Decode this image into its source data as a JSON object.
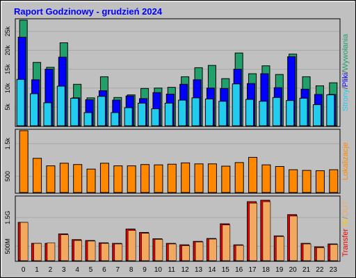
{
  "title": "Raport Godzinowy -  grudzień 2024",
  "colors": {
    "background": "#c0c0c0",
    "title": "#0000ff",
    "wywolania": "#22a06b",
    "pliki": "#0000ff",
    "strony": "#22ccee",
    "lokalizacje": "#ff8800",
    "transfer_in": "#ee0000",
    "transfer_out": "#f3a860"
  },
  "chart_data": [
    {
      "type": "bar",
      "panel": "hits",
      "categories": [
        "0",
        "1",
        "2",
        "3",
        "4",
        "5",
        "6",
        "7",
        "8",
        "9",
        "10",
        "11",
        "12",
        "13",
        "14",
        "15",
        "16",
        "17",
        "18",
        "19",
        "20",
        "21",
        "22",
        "23"
      ],
      "ylim": [
        0,
        28000
      ],
      "yticks": [
        {
          "value": 5000,
          "label": "5k"
        },
        {
          "value": 10000,
          "label": "10k"
        },
        {
          "value": 15000,
          "label": "15k"
        },
        {
          "value": 20000,
          "label": "20k"
        },
        {
          "value": 25000,
          "label": "25k"
        }
      ],
      "legend": [
        {
          "text": "Strony",
          "color": "#22ccee"
        },
        {
          "text": "/",
          "color": "#444444"
        },
        {
          "text": "Pliki",
          "color": "#0000ff"
        },
        {
          "text": "/",
          "color": "#444444"
        },
        {
          "text": "Wywołania",
          "color": "#22a06b"
        }
      ],
      "series": [
        {
          "name": "Wywołania",
          "values": [
            28000,
            16800,
            15500,
            22000,
            11000,
            7400,
            13000,
            7500,
            8200,
            9900,
            10000,
            10200,
            13000,
            15400,
            16000,
            12500,
            19300,
            13800,
            15900,
            13600,
            19000,
            13000,
            10600,
            11400
          ]
        },
        {
          "name": "Pliki",
          "values": [
            23500,
            12200,
            15000,
            18200,
            7400,
            6900,
            9300,
            6800,
            7900,
            7200,
            8800,
            8400,
            11000,
            12200,
            10000,
            9900,
            15000,
            11200,
            13800,
            10100,
            18300,
            9700,
            8300,
            8300
          ]
        },
        {
          "name": "Strony",
          "values": [
            12300,
            8500,
            6100,
            10500,
            7300,
            3500,
            7800,
            3500,
            4800,
            6000,
            4500,
            6000,
            6800,
            7400,
            7100,
            6500,
            11100,
            7000,
            6500,
            7500,
            6700,
            7300,
            5600,
            8200
          ]
        }
      ]
    },
    {
      "type": "bar",
      "panel": "sites",
      "categories": [
        "0",
        "1",
        "2",
        "3",
        "4",
        "5",
        "6",
        "7",
        "8",
        "9",
        "10",
        "11",
        "12",
        "13",
        "14",
        "15",
        "16",
        "17",
        "18",
        "19",
        "20",
        "21",
        "22",
        "23"
      ],
      "ylim": [
        0,
        1900
      ],
      "yticks": [
        {
          "value": 500,
          "label": "500"
        },
        {
          "value": 1500,
          "label": "1.5k"
        }
      ],
      "legend": [
        {
          "text": "Lokalizacje",
          "color": "#ff8800"
        }
      ],
      "series": [
        {
          "name": "Lokalizacje",
          "values": [
            1900,
            1050,
            820,
            900,
            860,
            720,
            900,
            820,
            820,
            860,
            850,
            870,
            910,
            880,
            880,
            810,
            920,
            1080,
            850,
            800,
            700,
            680,
            670,
            700
          ]
        }
      ]
    },
    {
      "type": "bar",
      "panel": "transfer",
      "categories": [
        "0",
        "1",
        "2",
        "3",
        "4",
        "5",
        "6",
        "7",
        "8",
        "9",
        "10",
        "11",
        "12",
        "13",
        "14",
        "15",
        "16",
        "17",
        "18",
        "19",
        "20",
        "21",
        "22",
        "23"
      ],
      "ylim": [
        0,
        2.2
      ],
      "yticks": [
        {
          "value": 0.5,
          "label": "500M"
        },
        {
          "value": 1.5,
          "label": "1.5G"
        }
      ],
      "legend": [
        {
          "text": "Transfer",
          "color": "#ee0000"
        },
        {
          "text": "IN",
          "color": "#ffcc00"
        },
        {
          "text": "/",
          "color": "#888888"
        },
        {
          "text": "OUT",
          "color": "#f3a860"
        }
      ],
      "series": [
        {
          "name": "IN",
          "values": [
            1.33,
            0.6,
            0.6,
            0.93,
            0.73,
            0.7,
            0.62,
            0.6,
            1.1,
            0.98,
            0.76,
            0.6,
            0.55,
            0.67,
            0.77,
            1.28,
            0.55,
            2.05,
            2.1,
            0.86,
            1.6,
            0.6,
            0.48,
            0.58
          ]
        },
        {
          "name": "OUT",
          "values": [
            1.33,
            0.6,
            0.62,
            0.9,
            0.7,
            0.68,
            0.6,
            0.58,
            1.05,
            0.95,
            0.74,
            0.58,
            0.52,
            0.65,
            0.75,
            1.24,
            0.53,
            2.0,
            2.05,
            0.84,
            1.55,
            0.58,
            0.45,
            0.56
          ]
        }
      ]
    }
  ]
}
